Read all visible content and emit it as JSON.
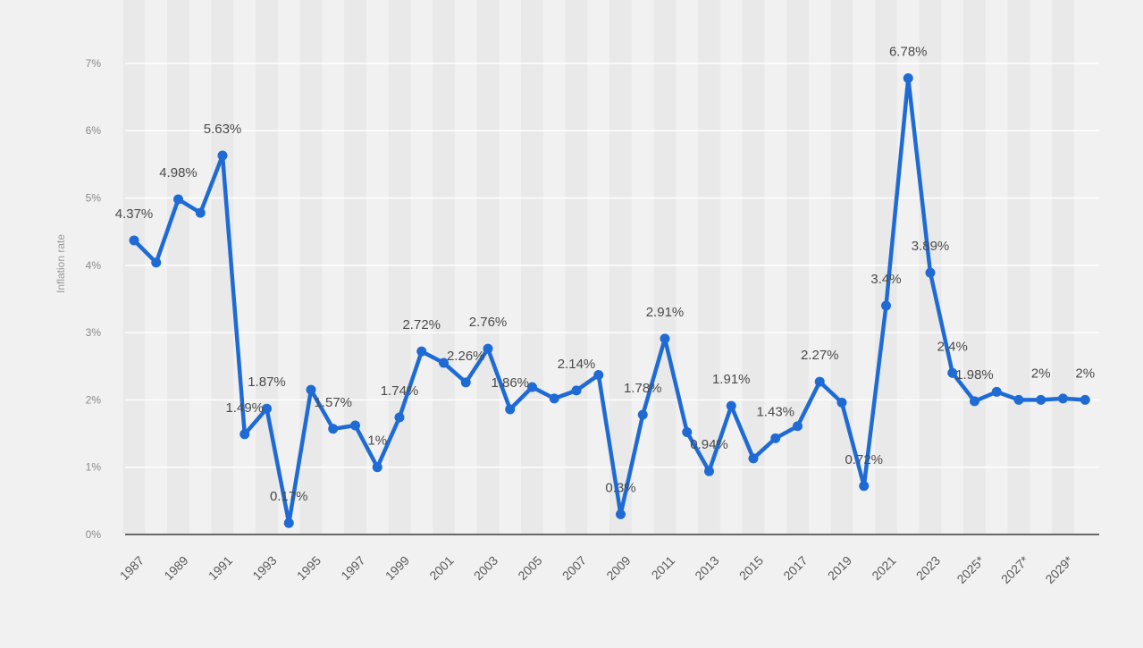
{
  "chart_data": {
    "type": "line",
    "ylabel": "Inflation rate",
    "ylim": [
      0,
      7.5
    ],
    "y_ticks": [
      "0%",
      "1%",
      "2%",
      "3%",
      "4%",
      "5%",
      "6%",
      "7%"
    ],
    "grid": true,
    "x_tick_labels": [
      "1987",
      "1989",
      "1991",
      "1993",
      "1995",
      "1997",
      "1999",
      "2001",
      "2003",
      "2005",
      "2007",
      "2009",
      "2011",
      "2013",
      "2015",
      "2017",
      "2019",
      "2021",
      "2023",
      "2025*",
      "2027*",
      "2029*"
    ],
    "line_color": "#1f6bd6",
    "series": [
      {
        "x": [
          1987,
          1988,
          1989,
          1990,
          1991,
          1992,
          1993,
          1994,
          1995,
          1996,
          1997,
          1998,
          1999,
          2000,
          2001,
          2002,
          2003,
          2004,
          2005,
          2006,
          2007,
          2008,
          2009,
          2010,
          2011,
          2012,
          2013,
          2014,
          2015,
          2016,
          2017,
          2018,
          2019,
          2020,
          2021,
          2022,
          2023,
          2024,
          2025,
          2026,
          2027,
          2028,
          2029,
          2030
        ],
        "values": [
          4.37,
          4.04,
          4.98,
          4.78,
          5.63,
          1.49,
          1.87,
          0.17,
          2.15,
          1.57,
          1.62,
          1.0,
          1.74,
          2.72,
          2.55,
          2.26,
          2.76,
          1.86,
          2.19,
          2.02,
          2.14,
          2.37,
          0.3,
          1.78,
          2.91,
          1.52,
          0.94,
          1.91,
          1.13,
          1.43,
          1.61,
          2.27,
          1.96,
          0.72,
          3.4,
          6.78,
          3.89,
          2.4,
          1.98,
          2.12,
          2.0,
          2.0,
          2.02,
          2.0
        ]
      }
    ],
    "data_labels": [
      {
        "x": 1987,
        "text": "4.37%"
      },
      {
        "x": 1989,
        "text": "4.98%"
      },
      {
        "x": 1991,
        "text": "5.63%"
      },
      {
        "x": 1992,
        "text": "1.49%"
      },
      {
        "x": 1993,
        "text": "1.87%"
      },
      {
        "x": 1994,
        "text": "0.17%"
      },
      {
        "x": 1996,
        "text": "1.57%"
      },
      {
        "x": 1998,
        "text": "1%"
      },
      {
        "x": 1999,
        "text": "1.74%"
      },
      {
        "x": 2000,
        "text": "2.72%"
      },
      {
        "x": 2002,
        "text": "2.26%"
      },
      {
        "x": 2003,
        "text": "2.76%"
      },
      {
        "x": 2004,
        "text": "1.86%"
      },
      {
        "x": 2007,
        "text": "2.14%"
      },
      {
        "x": 2009,
        "text": "0.3%"
      },
      {
        "x": 2010,
        "text": "1.78%"
      },
      {
        "x": 2011,
        "text": "2.91%"
      },
      {
        "x": 2013,
        "text": "0.94%"
      },
      {
        "x": 2014,
        "text": "1.91%"
      },
      {
        "x": 2016,
        "text": "1.43%"
      },
      {
        "x": 2018,
        "text": "2.27%"
      },
      {
        "x": 2020,
        "text": "0.72%"
      },
      {
        "x": 2021,
        "text": "3.4%"
      },
      {
        "x": 2022,
        "text": "6.78%"
      },
      {
        "x": 2023,
        "text": "3.89%"
      },
      {
        "x": 2024,
        "text": "2.4%"
      },
      {
        "x": 2025,
        "text": "1.98%"
      },
      {
        "x": 2028,
        "text": "2%"
      },
      {
        "x": 2030,
        "text": "2%"
      }
    ]
  }
}
